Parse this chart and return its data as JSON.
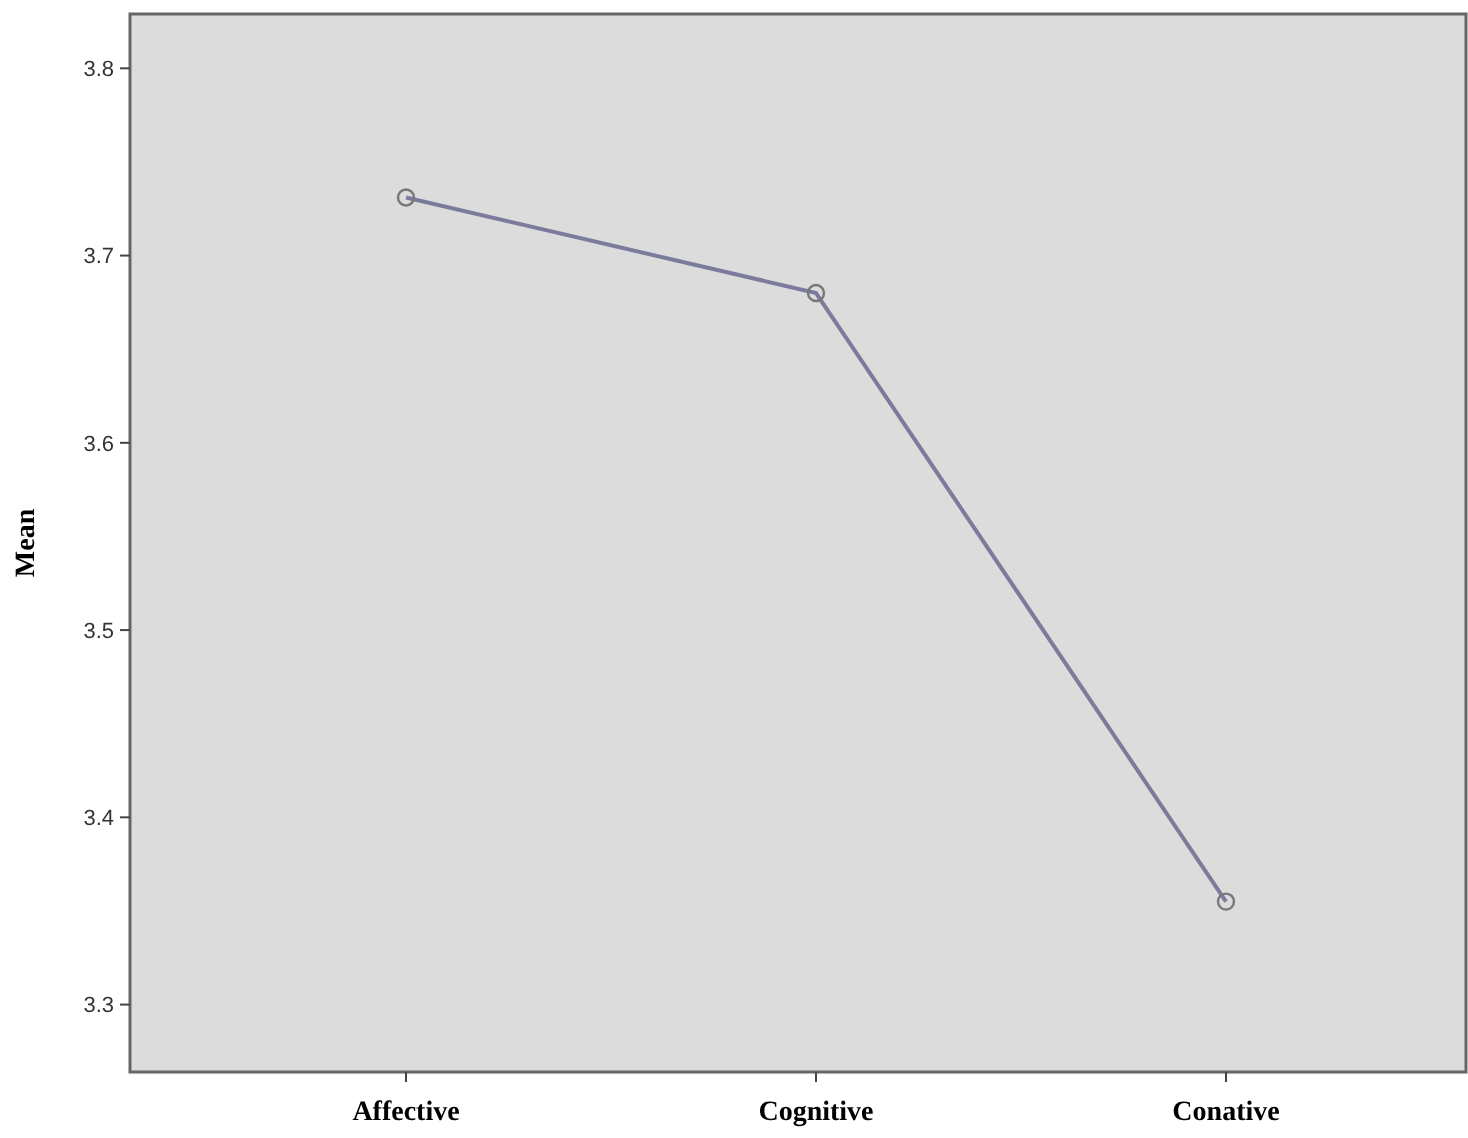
{
  "chart_data": {
    "type": "line",
    "ylabel": "Mean",
    "categories": [
      "Affective",
      "Cognitive",
      "Conative"
    ],
    "series": [
      {
        "color": "#7b7b9c",
        "values": [
          3.731,
          3.68,
          3.355
        ]
      }
    ],
    "ylim": [
      3.264,
      3.829
    ],
    "yticks": [
      3.3,
      3.4,
      3.5,
      3.6,
      3.7,
      3.8
    ],
    "marker": "circle",
    "grid": false
  }
}
